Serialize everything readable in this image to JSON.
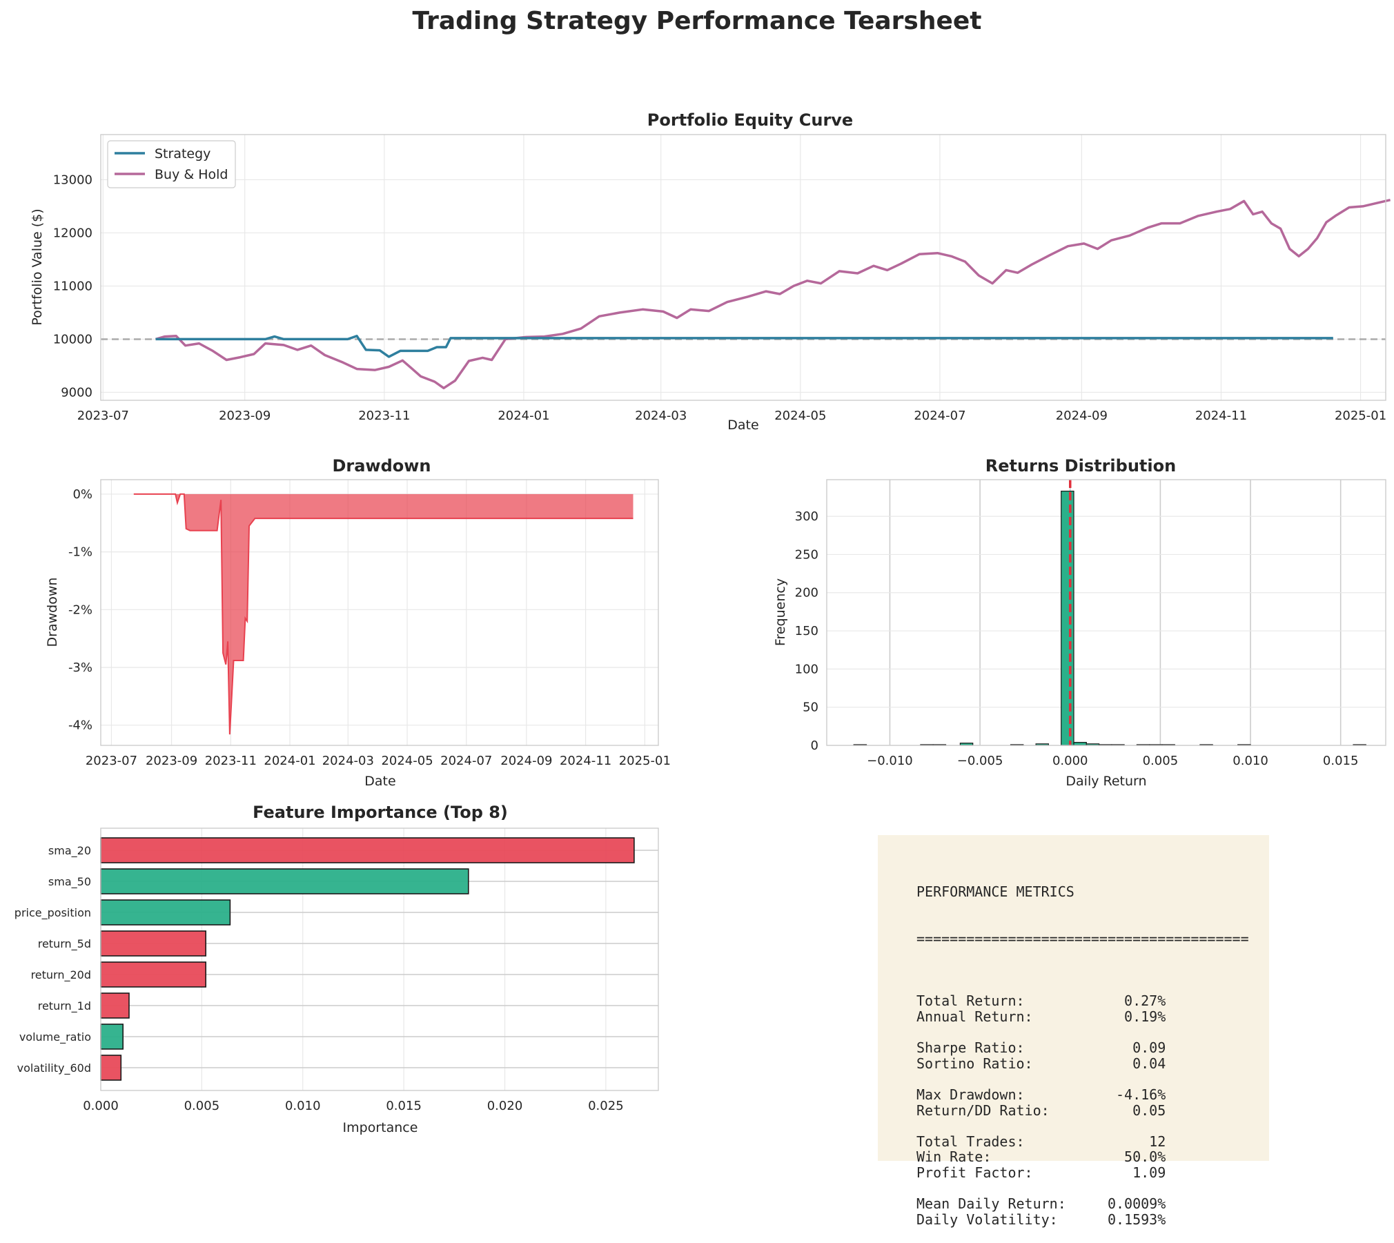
{
  "figure_title": "Trading Strategy Performance Tearsheet",
  "colors": {
    "strategy": "#2e7f9e",
    "buy_hold": "#b5689a",
    "drawdown": "#e8414f",
    "positive": "#2bb08a",
    "negative": "#e84a5a",
    "metrics_bg": "#f8f2e3"
  },
  "chart_data": [
    {
      "type": "line",
      "title": "Portfolio Equity Curve",
      "xlabel": "Date",
      "ylabel": "Portfolio Value ($)",
      "x_ticks": [
        "2023-07",
        "2023-09",
        "2023-11",
        "2024-01",
        "2024-03",
        "2024-05",
        "2024-07",
        "2024-09",
        "2024-11",
        "2025-01"
      ],
      "y_ticks": [
        9000,
        10000,
        11000,
        12000,
        13000
      ],
      "xlim": [
        "2023-06-30",
        "2025-01-12"
      ],
      "ylim": [
        8850,
        13850
      ],
      "reference_line": 10000,
      "legend_position": "upper-left",
      "grid": true,
      "series": [
        {
          "name": "Strategy",
          "points": [
            [
              "2023-07-24",
              10000
            ],
            [
              "2023-08-01",
              10000
            ],
            [
              "2023-08-20",
              10000
            ],
            [
              "2023-09-10",
              10000
            ],
            [
              "2023-09-14",
              10050
            ],
            [
              "2023-09-18",
              10000
            ],
            [
              "2023-10-16",
              10000
            ],
            [
              "2023-10-20",
              10060
            ],
            [
              "2023-10-24",
              9800
            ],
            [
              "2023-10-30",
              9790
            ],
            [
              "2023-11-03",
              9670
            ],
            [
              "2023-11-08",
              9780
            ],
            [
              "2023-11-20",
              9780
            ],
            [
              "2023-11-24",
              9850
            ],
            [
              "2023-11-28",
              9850
            ],
            [
              "2023-11-30",
              10020
            ],
            [
              "2024-02-01",
              10020
            ],
            [
              "2024-06-01",
              10020
            ],
            [
              "2024-10-01",
              10020
            ],
            [
              "2024-12-20",
              10020
            ]
          ]
        },
        {
          "name": "Buy & Hold",
          "points": [
            [
              "2023-07-24",
              10000
            ],
            [
              "2023-07-28",
              10050
            ],
            [
              "2023-08-02",
              10060
            ],
            [
              "2023-08-06",
              9880
            ],
            [
              "2023-08-12",
              9920
            ],
            [
              "2023-08-18",
              9780
            ],
            [
              "2023-08-24",
              9610
            ],
            [
              "2023-08-30",
              9660
            ],
            [
              "2023-09-05",
              9720
            ],
            [
              "2023-09-10",
              9920
            ],
            [
              "2023-09-18",
              9890
            ],
            [
              "2023-09-24",
              9800
            ],
            [
              "2023-09-30",
              9880
            ],
            [
              "2023-10-06",
              9700
            ],
            [
              "2023-10-14",
              9560
            ],
            [
              "2023-10-20",
              9440
            ],
            [
              "2023-10-28",
              9420
            ],
            [
              "2023-11-03",
              9480
            ],
            [
              "2023-11-09",
              9600
            ],
            [
              "2023-11-13",
              9450
            ],
            [
              "2023-11-17",
              9300
            ],
            [
              "2023-11-23",
              9200
            ],
            [
              "2023-11-27",
              9080
            ],
            [
              "2023-12-02",
              9220
            ],
            [
              "2023-12-08",
              9590
            ],
            [
              "2023-12-14",
              9650
            ],
            [
              "2023-12-18",
              9610
            ],
            [
              "2023-12-24",
              10000
            ],
            [
              "2024-01-02",
              10040
            ],
            [
              "2024-01-10",
              10050
            ],
            [
              "2024-01-18",
              10100
            ],
            [
              "2024-01-26",
              10200
            ],
            [
              "2024-02-03",
              10430
            ],
            [
              "2024-02-12",
              10500
            ],
            [
              "2024-02-22",
              10560
            ],
            [
              "2024-03-02",
              10520
            ],
            [
              "2024-03-08",
              10400
            ],
            [
              "2024-03-14",
              10560
            ],
            [
              "2024-03-22",
              10530
            ],
            [
              "2024-03-30",
              10700
            ],
            [
              "2024-04-08",
              10800
            ],
            [
              "2024-04-16",
              10900
            ],
            [
              "2024-04-22",
              10850
            ],
            [
              "2024-04-28",
              11000
            ],
            [
              "2024-05-04",
              11100
            ],
            [
              "2024-05-10",
              11050
            ],
            [
              "2024-05-18",
              11280
            ],
            [
              "2024-05-26",
              11240
            ],
            [
              "2024-06-02",
              11380
            ],
            [
              "2024-06-08",
              11300
            ],
            [
              "2024-06-14",
              11420
            ],
            [
              "2024-06-22",
              11600
            ],
            [
              "2024-06-30",
              11620
            ],
            [
              "2024-07-06",
              11560
            ],
            [
              "2024-07-12",
              11460
            ],
            [
              "2024-07-18",
              11200
            ],
            [
              "2024-07-24",
              11050
            ],
            [
              "2024-07-30",
              11300
            ],
            [
              "2024-08-04",
              11250
            ],
            [
              "2024-08-10",
              11400
            ],
            [
              "2024-08-18",
              11580
            ],
            [
              "2024-08-26",
              11750
            ],
            [
              "2024-09-02",
              11800
            ],
            [
              "2024-09-08",
              11700
            ],
            [
              "2024-09-14",
              11860
            ],
            [
              "2024-09-22",
              11950
            ],
            [
              "2024-09-30",
              12100
            ],
            [
              "2024-10-06",
              12180
            ],
            [
              "2024-10-14",
              12180
            ],
            [
              "2024-10-22",
              12320
            ],
            [
              "2024-10-30",
              12400
            ],
            [
              "2024-11-05",
              12450
            ],
            [
              "2024-11-11",
              12600
            ],
            [
              "2024-11-15",
              12350
            ],
            [
              "2024-11-19",
              12400
            ],
            [
              "2024-11-23",
              12180
            ],
            [
              "2024-11-27",
              12080
            ],
            [
              "2024-12-01",
              11700
            ],
            [
              "2024-12-05",
              11560
            ],
            [
              "2024-12-09",
              11700
            ],
            [
              "2024-12-13",
              11900
            ],
            [
              "2024-12-17",
              12200
            ],
            [
              "2024-12-21",
              12320
            ],
            [
              "2024-12-27",
              12480
            ],
            [
              "2025-01-02",
              12500
            ],
            [
              "2025-01-08",
              12560
            ],
            [
              "2025-01-14",
              12620
            ]
          ]
        }
      ]
    },
    {
      "type": "area",
      "title": "Drawdown",
      "xlabel": "Date",
      "ylabel": "Drawdown",
      "x_ticks": [
        "2023-07",
        "2023-09",
        "2023-11",
        "2024-01",
        "2024-03",
        "2024-05",
        "2024-07",
        "2024-09",
        "2024-11",
        "2025-01"
      ],
      "y_ticks": [
        "0%",
        "-1%",
        "-2%",
        "-3%",
        "-4%"
      ],
      "ylim": [
        -4.35,
        0.25
      ],
      "grid": true,
      "points": [
        [
          "2023-07-24",
          0
        ],
        [
          "2023-09-05",
          0
        ],
        [
          "2023-09-07",
          -0.15
        ],
        [
          "2023-09-10",
          0
        ],
        [
          "2023-09-14",
          0
        ],
        [
          "2023-09-16",
          -0.6
        ],
        [
          "2023-09-20",
          -0.63
        ],
        [
          "2023-10-18",
          -0.63
        ],
        [
          "2023-10-22",
          -0.1
        ],
        [
          "2023-10-24",
          -2.75
        ],
        [
          "2023-10-27",
          -2.95
        ],
        [
          "2023-10-29",
          -2.55
        ],
        [
          "2023-10-31",
          -4.16
        ],
        [
          "2023-11-04",
          -2.88
        ],
        [
          "2023-11-14",
          -2.88
        ],
        [
          "2023-11-16",
          -2.15
        ],
        [
          "2023-11-18",
          -2.2
        ],
        [
          "2023-11-20",
          -0.55
        ],
        [
          "2023-11-26",
          -0.42
        ],
        [
          "2024-12-20",
          -0.42
        ]
      ]
    },
    {
      "type": "bar",
      "title": "Returns Distribution",
      "xlabel": "Daily Return",
      "ylabel": "Frequency",
      "x_ticks": [
        "−0.010",
        "−0.005",
        "0.000",
        "0.005",
        "0.010",
        "0.015"
      ],
      "y_ticks": [
        0,
        50,
        100,
        150,
        200,
        250,
        300
      ],
      "xlim": [
        -0.0135,
        0.0175
      ],
      "ylim": [
        0,
        348
      ],
      "reference_line": 0.0,
      "bins": [
        [
          -0.012,
          1
        ],
        [
          -0.0083,
          1
        ],
        [
          -0.0076,
          1
        ],
        [
          -0.0061,
          3
        ],
        [
          -0.0033,
          1
        ],
        [
          -0.0019,
          2
        ],
        [
          -0.0005,
          333
        ],
        [
          0.0002,
          4
        ],
        [
          0.0009,
          2
        ],
        [
          0.0016,
          1
        ],
        [
          0.0023,
          1
        ],
        [
          0.0037,
          1
        ],
        [
          0.0044,
          1
        ],
        [
          0.0051,
          1
        ],
        [
          0.0072,
          1
        ],
        [
          0.0093,
          1
        ],
        [
          0.0157,
          1
        ]
      ]
    },
    {
      "type": "bar",
      "orientation": "horizontal",
      "title": "Feature Importance (Top 8)",
      "xlabel": "Importance",
      "x_ticks": [
        "0.000",
        "0.005",
        "0.010",
        "0.015",
        "0.020",
        "0.025"
      ],
      "xlim": [
        0,
        0.0276
      ],
      "categories": [
        "sma_20",
        "sma_50",
        "price_position",
        "return_5d",
        "return_20d",
        "return_1d",
        "volume_ratio",
        "volatility_60d"
      ],
      "values": [
        0.0264,
        0.0182,
        0.0064,
        0.0052,
        0.0052,
        0.0014,
        0.0011,
        0.001
      ],
      "bar_colors": [
        "negative",
        "positive",
        "positive",
        "negative",
        "negative",
        "negative",
        "positive",
        "negative"
      ]
    }
  ],
  "metrics": {
    "header": "PERFORMANCE METRICS",
    "rule": "========================================",
    "groups": [
      [
        {
          "label": "Total Return:",
          "value": "0.27%"
        },
        {
          "label": "Annual Return:",
          "value": "0.19%"
        }
      ],
      [
        {
          "label": "Sharpe Ratio:",
          "value": "0.09"
        },
        {
          "label": "Sortino Ratio:",
          "value": "0.04"
        }
      ],
      [
        {
          "label": "Max Drawdown:",
          "value": "-4.16%"
        },
        {
          "label": "Return/DD Ratio:",
          "value": "0.05"
        }
      ],
      [
        {
          "label": "Total Trades:",
          "value": "12"
        },
        {
          "label": "Win Rate:",
          "value": "50.0%"
        },
        {
          "label": "Profit Factor:",
          "value": "1.09"
        }
      ],
      [
        {
          "label": "Mean Daily Return:",
          "value": "0.0009%"
        },
        {
          "label": "Daily Volatility:",
          "value": "0.1593%"
        }
      ]
    ]
  }
}
